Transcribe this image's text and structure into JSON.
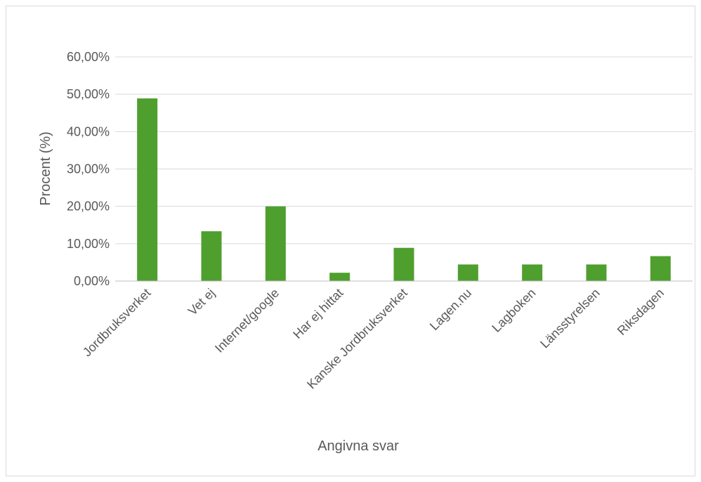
{
  "chart_data": {
    "type": "bar",
    "categories": [
      "Jordbruksverket",
      "Vet ej",
      "Internet/google",
      "Har ej hittat",
      "Kanske Jordbruksverket",
      "Lagen.nu",
      "Lagboken",
      "Länsstyrelsen",
      "Riksdagen"
    ],
    "values": [
      48.89,
      13.33,
      20.0,
      2.22,
      8.89,
      4.44,
      4.44,
      4.44,
      6.67
    ],
    "xlabel": "Angivna svar",
    "ylabel": "Procent (%)",
    "ylim": [
      0,
      60
    ],
    "yticks": [
      "0,00%",
      "10,00%",
      "20,00%",
      "30,00%",
      "40,00%",
      "50,00%",
      "60,00%"
    ],
    "grid": true,
    "bar_color": "#4f9f2f",
    "legend": "none"
  }
}
